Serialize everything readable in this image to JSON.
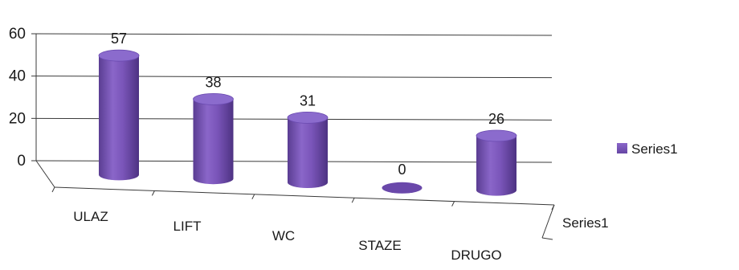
{
  "chart_data": {
    "type": "bar",
    "style": "3d-cylinder",
    "categories": [
      "ULAZ",
      "LIFT",
      "WC",
      "STAZE",
      "DRUGO"
    ],
    "series": [
      {
        "name": "Series1",
        "values": [
          57,
          38,
          31,
          0,
          26
        ],
        "color": "#7b56b8"
      }
    ],
    "ylim": [
      0,
      60
    ],
    "yticks": [
      0,
      20,
      40,
      60
    ],
    "depth_axis_label": "Series1",
    "legend": {
      "position": "right",
      "entries": [
        "Series1"
      ]
    },
    "grid": true
  }
}
